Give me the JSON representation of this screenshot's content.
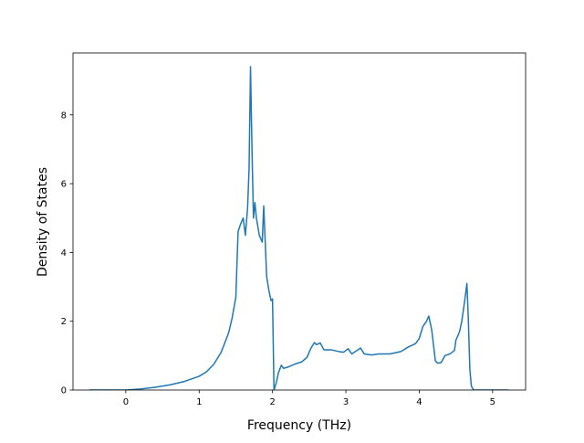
{
  "chart_data": {
    "type": "line",
    "title": "",
    "xlabel": "Frequency (THz)",
    "ylabel": "Density of States",
    "xlim": [
      -0.72,
      5.45
    ],
    "ylim": [
      0,
      9.8
    ],
    "xticks": [
      0,
      1,
      2,
      3,
      4,
      5
    ],
    "yticks": [
      0,
      2,
      4,
      6,
      8
    ],
    "grid": false,
    "line_color": "#1f77b4",
    "series": [
      {
        "x": [
          -0.5,
          -0.2,
          0.0,
          0.2,
          0.4,
          0.6,
          0.8,
          1.0,
          1.1,
          1.2,
          1.3,
          1.4,
          1.45,
          1.5,
          1.53,
          1.56,
          1.6,
          1.63,
          1.66,
          1.68,
          1.7,
          1.72,
          1.74,
          1.76,
          1.78,
          1.82,
          1.86,
          1.88,
          1.92,
          1.95,
          1.98,
          2.0,
          2.02,
          2.05,
          2.08,
          2.12,
          2.15,
          2.2,
          2.3,
          2.4,
          2.47,
          2.52,
          2.57,
          2.6,
          2.65,
          2.7,
          2.8,
          2.9,
          2.97,
          3.0,
          3.03,
          3.08,
          3.15,
          3.2,
          3.25,
          3.35,
          3.45,
          3.6,
          3.75,
          3.85,
          3.9,
          3.95,
          4.0,
          4.05,
          4.1,
          4.13,
          4.17,
          4.22,
          4.25,
          4.3,
          4.35,
          4.42,
          4.48,
          4.5,
          4.55,
          4.58,
          4.62,
          4.65,
          4.67,
          4.69,
          4.71,
          4.74,
          4.78,
          5.0,
          5.22
        ],
        "y": [
          0.0,
          0.0,
          0.0,
          0.03,
          0.08,
          0.15,
          0.25,
          0.4,
          0.53,
          0.75,
          1.1,
          1.65,
          2.1,
          2.7,
          4.6,
          4.8,
          5.0,
          4.5,
          5.3,
          6.4,
          9.4,
          7.0,
          5.0,
          5.45,
          5.0,
          4.5,
          4.3,
          5.35,
          3.3,
          2.9,
          2.6,
          2.65,
          0.0,
          0.2,
          0.5,
          0.72,
          0.63,
          0.66,
          0.75,
          0.82,
          0.95,
          1.2,
          1.38,
          1.32,
          1.37,
          1.17,
          1.17,
          1.12,
          1.1,
          1.15,
          1.2,
          1.05,
          1.15,
          1.22,
          1.05,
          1.02,
          1.05,
          1.05,
          1.12,
          1.25,
          1.3,
          1.35,
          1.5,
          1.85,
          2.0,
          2.15,
          1.75,
          0.85,
          0.78,
          0.8,
          1.0,
          1.05,
          1.15,
          1.45,
          1.7,
          2.0,
          2.6,
          3.1,
          2.0,
          0.6,
          0.12,
          0.0,
          0.0,
          0.0,
          0.0
        ]
      }
    ]
  }
}
